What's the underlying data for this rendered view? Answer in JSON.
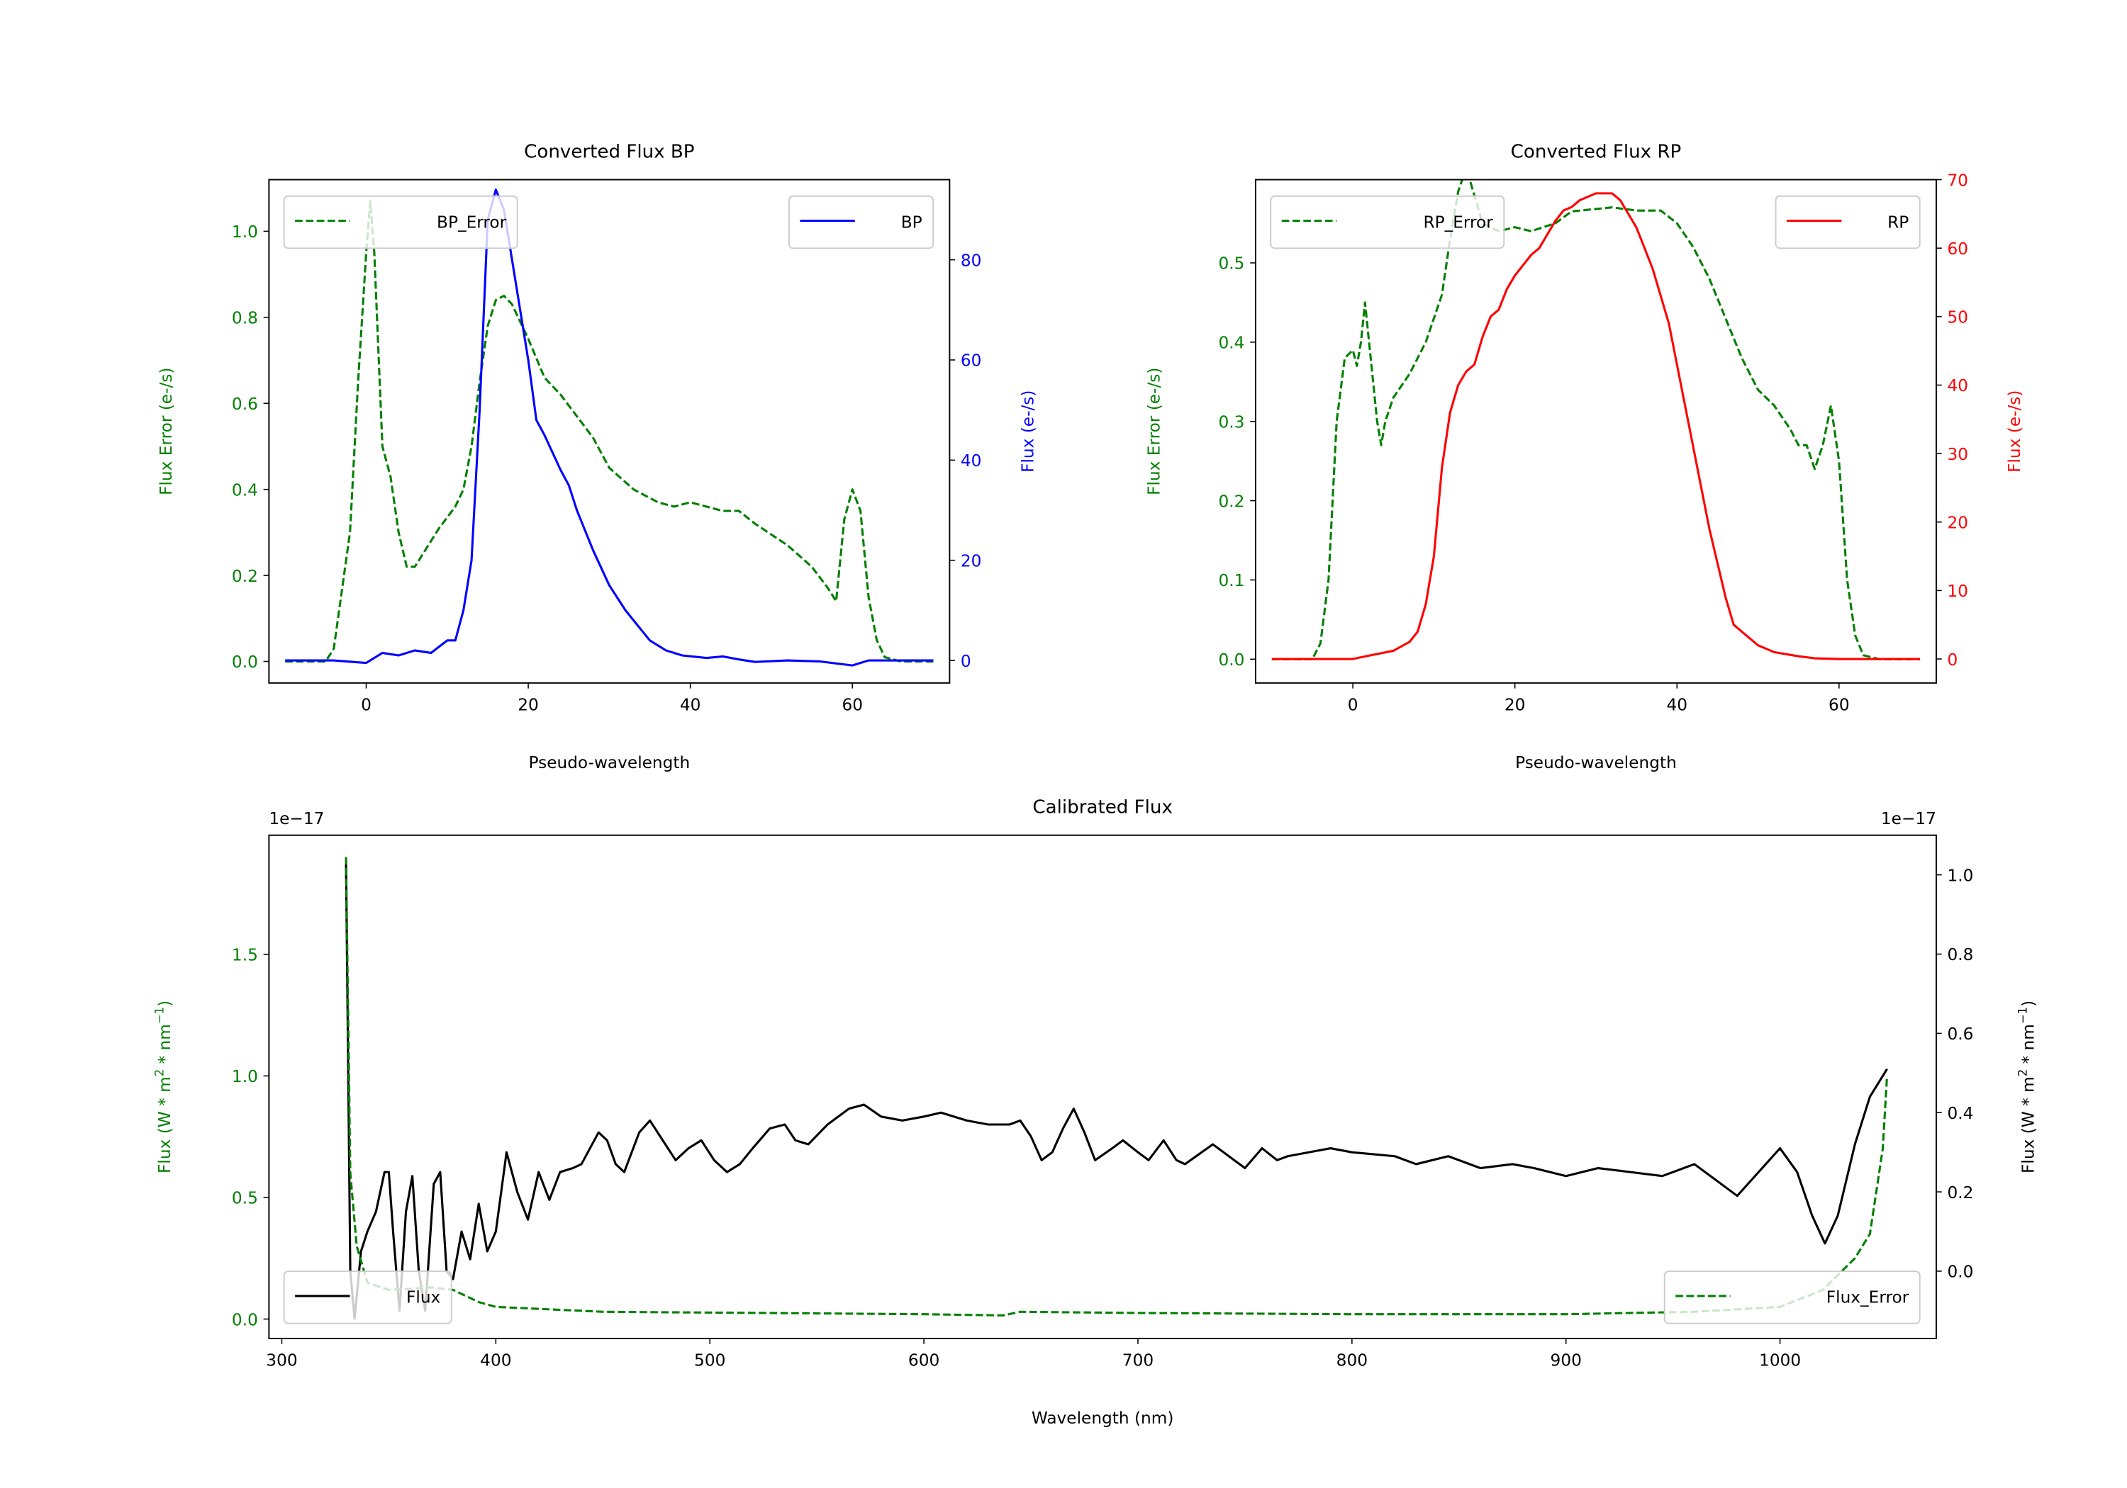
{
  "chart_data": [
    {
      "type": "line",
      "title": "Converted Flux BP",
      "xlabel": "Pseudo-wavelength",
      "ylabel_left": "Flux Error (e-/s)",
      "ylabel_right": "Flux (e-/s)",
      "xticks": [
        "0",
        "20",
        "40",
        "60"
      ],
      "yticks_left": [
        "0.0",
        "0.2",
        "0.4",
        "0.6",
        "0.8",
        "1.0"
      ],
      "yticks_right": [
        "0",
        "20",
        "40",
        "60",
        "80"
      ],
      "left_color": "#008000",
      "right_color": "#0000ff",
      "legend_left": {
        "label": "BP_Error",
        "placement": "upper-left"
      },
      "legend_right": {
        "label": "BP",
        "placement": "upper-right"
      },
      "series": [
        {
          "name": "BP_Error",
          "axis": "left",
          "style": "dashed",
          "color": "#008000",
          "x": [
            -10,
            -5,
            -4,
            -2,
            -1,
            0,
            0.5,
            1,
            2,
            3,
            4,
            5,
            6,
            7,
            9,
            11,
            12,
            13,
            14,
            15,
            16,
            17,
            18,
            20,
            22,
            24,
            26,
            28,
            30,
            33,
            36,
            38,
            40,
            42,
            44,
            46,
            48,
            52,
            55,
            57,
            58,
            59,
            60,
            61,
            62,
            63,
            64,
            66,
            70
          ],
          "y": [
            0,
            0,
            0.03,
            0.3,
            0.65,
            0.95,
            1.07,
            0.95,
            0.5,
            0.43,
            0.3,
            0.22,
            0.22,
            0.25,
            0.31,
            0.36,
            0.4,
            0.5,
            0.65,
            0.78,
            0.84,
            0.85,
            0.83,
            0.75,
            0.66,
            0.62,
            0.57,
            0.52,
            0.45,
            0.4,
            0.37,
            0.36,
            0.37,
            0.36,
            0.35,
            0.35,
            0.32,
            0.27,
            0.22,
            0.17,
            0.14,
            0.33,
            0.4,
            0.35,
            0.15,
            0.05,
            0.01,
            0,
            0
          ]
        },
        {
          "name": "BP",
          "axis": "right",
          "style": "solid",
          "color": "#0000ff",
          "x": [
            -10,
            -4,
            0,
            2,
            4,
            6,
            8,
            10,
            11,
            12,
            13,
            14,
            15,
            16,
            17,
            18,
            19,
            20,
            21,
            22,
            24,
            25,
            26,
            28,
            30,
            32,
            33,
            34,
            35,
            37,
            39,
            42,
            44,
            46,
            48,
            52,
            56,
            60,
            62,
            65,
            70
          ],
          "y": [
            0,
            0,
            -0.5,
            1.5,
            1,
            2,
            1.5,
            4,
            4,
            10,
            20,
            50,
            88,
            94,
            90,
            80,
            70,
            60,
            48,
            45,
            38,
            35,
            30,
            22,
            15,
            10,
            8,
            6,
            4,
            2,
            1,
            0.5,
            0.8,
            0.2,
            -0.3,
            0,
            -0.2,
            -1,
            0,
            0,
            0
          ]
        }
      ],
      "xlim": [
        -12,
        72
      ],
      "ylim_left": [
        -0.05,
        1.12
      ],
      "ylim_right": [
        -4.5,
        96
      ]
    },
    {
      "type": "line",
      "title": "Converted Flux RP",
      "xlabel": "Pseudo-wavelength",
      "ylabel_left": "Flux Error (e-/s)",
      "ylabel_right": "Flux (e-/s)",
      "xticks": [
        "0",
        "20",
        "40",
        "60"
      ],
      "yticks_left": [
        "0.0",
        "0.1",
        "0.2",
        "0.3",
        "0.4",
        "0.5"
      ],
      "yticks_right": [
        "0",
        "10",
        "20",
        "30",
        "40",
        "50",
        "60",
        "70"
      ],
      "left_color": "#008000",
      "right_color": "#ff0000",
      "legend_left": {
        "label": "RP_Error",
        "placement": "upper-left"
      },
      "legend_right": {
        "label": "RP",
        "placement": "upper-right"
      },
      "series": [
        {
          "name": "RP_Error",
          "axis": "left",
          "style": "dashed",
          "color": "#008000",
          "x": [
            -10,
            -5,
            -4,
            -3,
            -2,
            -1,
            0,
            0.5,
            1,
            1.5,
            2,
            3,
            3.5,
            4,
            5,
            7,
            9,
            11,
            12,
            13,
            14,
            16,
            18,
            20,
            22,
            25,
            27,
            29,
            32,
            35,
            38,
            40,
            42,
            44,
            46,
            48,
            50,
            52,
            54,
            55,
            56,
            57,
            58,
            59,
            60,
            61,
            62,
            63,
            65,
            70
          ],
          "y": [
            0,
            0,
            0.02,
            0.1,
            0.3,
            0.38,
            0.39,
            0.37,
            0.4,
            0.45,
            0.4,
            0.3,
            0.27,
            0.3,
            0.33,
            0.36,
            0.4,
            0.46,
            0.53,
            0.59,
            0.62,
            0.55,
            0.54,
            0.545,
            0.54,
            0.55,
            0.565,
            0.567,
            0.57,
            0.566,
            0.566,
            0.55,
            0.52,
            0.48,
            0.43,
            0.38,
            0.34,
            0.32,
            0.29,
            0.27,
            0.27,
            0.24,
            0.27,
            0.32,
            0.25,
            0.1,
            0.03,
            0.005,
            0,
            0
          ]
        },
        {
          "name": "RP",
          "axis": "right",
          "style": "solid",
          "color": "#ff0000",
          "x": [
            -10,
            0,
            2,
            5,
            7,
            8,
            9,
            10,
            11,
            12,
            13,
            14,
            15,
            16,
            17,
            18,
            19,
            20,
            21,
            22,
            23,
            24,
            25,
            26,
            27,
            28,
            30,
            32,
            33,
            34,
            35,
            36,
            37,
            38,
            39,
            40,
            41,
            42,
            43,
            44,
            45,
            46,
            47,
            48,
            49,
            50,
            52,
            55,
            57,
            60,
            70
          ],
          "y": [
            0,
            0,
            0.5,
            1.2,
            2.5,
            4,
            8,
            15,
            28,
            36,
            40,
            42,
            43,
            47,
            50,
            51,
            54,
            56,
            57.5,
            59,
            60,
            62,
            64,
            65.5,
            66,
            67,
            68,
            68,
            67,
            65,
            63,
            60,
            57,
            53,
            49,
            43,
            37,
            31,
            25,
            19,
            14,
            9,
            5,
            4,
            3,
            2,
            1,
            0.4,
            0.1,
            0,
            0
          ]
        }
      ],
      "xlim": [
        -12,
        72
      ],
      "ylim_left": [
        -0.03,
        0.605
      ],
      "ylim_right": [
        -3.5,
        70
      ]
    },
    {
      "type": "line",
      "title": "Calibrated Flux",
      "xlabel": "Wavelength (nm)",
      "ylabel_left": [
        "Flux (W * m",
        "2",
        " * nm",
        "−1",
        ")"
      ],
      "ylabel_right": [
        "Flux (W * m",
        "2",
        " * nm",
        "−1",
        ")"
      ],
      "offset_left": "1e−17",
      "offset_right": "1e−17",
      "xticks": [
        "300",
        "400",
        "500",
        "600",
        "700",
        "800",
        "900",
        "1000"
      ],
      "yticks_left": [
        "0.0",
        "0.5",
        "1.0",
        "1.5"
      ],
      "yticks_right": [
        "0.0",
        "0.2",
        "0.4",
        "0.6",
        "0.8",
        "1.0"
      ],
      "left_color": "#008000",
      "right_color": "#000000",
      "legend_left": {
        "label": "Flux",
        "placement": "lower-left"
      },
      "legend_right": {
        "label": "Flux_Error",
        "placement": "lower-right"
      },
      "series": [
        {
          "name": "Flux",
          "axis": "right",
          "style": "solid",
          "color": "#000000",
          "x": [
            330,
            332,
            334,
            337,
            340,
            344,
            348,
            350,
            352,
            355,
            358,
            361,
            364,
            367,
            371,
            374,
            377,
            380,
            384,
            388,
            392,
            396,
            400,
            405,
            410,
            415,
            420,
            425,
            430,
            436,
            440,
            448,
            452,
            456,
            460,
            467,
            472,
            478,
            484,
            490,
            496,
            502,
            508,
            514,
            520,
            528,
            535,
            540,
            546,
            555,
            565,
            572,
            580,
            590,
            600,
            608,
            620,
            630,
            640,
            645,
            650,
            655,
            660,
            665,
            670,
            675,
            680,
            688,
            693,
            700,
            705,
            712,
            718,
            722,
            735,
            745,
            750,
            758,
            765,
            770,
            780,
            790,
            800,
            820,
            830,
            845,
            860,
            875,
            885,
            900,
            915,
            930,
            945,
            960,
            970,
            980,
            990,
            1000,
            1008,
            1015,
            1021,
            1027,
            1035,
            1042,
            1050
          ],
          "y": [
            1.03,
            0.0,
            -0.12,
            0.05,
            0.1,
            0.15,
            0.25,
            0.25,
            0.1,
            -0.1,
            0.15,
            0.24,
            0.0,
            -0.1,
            0.22,
            0.25,
            0.0,
            -0.02,
            0.1,
            0.03,
            0.17,
            0.05,
            0.1,
            0.3,
            0.2,
            0.13,
            0.25,
            0.18,
            0.25,
            0.26,
            0.27,
            0.35,
            0.33,
            0.27,
            0.25,
            0.35,
            0.38,
            0.33,
            0.28,
            0.31,
            0.33,
            0.28,
            0.25,
            0.27,
            0.31,
            0.36,
            0.37,
            0.33,
            0.32,
            0.37,
            0.41,
            0.42,
            0.39,
            0.38,
            0.39,
            0.4,
            0.38,
            0.37,
            0.37,
            0.38,
            0.34,
            0.28,
            0.3,
            0.36,
            0.41,
            0.35,
            0.28,
            0.31,
            0.33,
            0.3,
            0.28,
            0.33,
            0.28,
            0.27,
            0.32,
            0.28,
            0.26,
            0.31,
            0.28,
            0.29,
            0.3,
            0.31,
            0.3,
            0.29,
            0.27,
            0.29,
            0.26,
            0.27,
            0.26,
            0.24,
            0.26,
            0.25,
            0.24,
            0.27,
            0.23,
            0.19,
            0.25,
            0.31,
            0.25,
            0.14,
            0.07,
            0.14,
            0.32,
            0.44,
            0.51
          ]
        },
        {
          "name": "Flux_Error",
          "axis": "left",
          "style": "dashed",
          "color": "#008000",
          "x": [
            330,
            332,
            335,
            340,
            350,
            370,
            380,
            392,
            400,
            450,
            600,
            637,
            645,
            700,
            800,
            900,
            960,
            1000,
            1020,
            1035,
            1042,
            1048,
            1050
          ],
          "y": [
            1.9,
            0.6,
            0.3,
            0.15,
            0.12,
            0.13,
            0.12,
            0.07,
            0.05,
            0.03,
            0.02,
            0.015,
            0.03,
            0.025,
            0.02,
            0.02,
            0.03,
            0.05,
            0.12,
            0.25,
            0.35,
            0.7,
            1.0
          ]
        }
      ],
      "xlim": [
        294,
        1073
      ],
      "ylim_left": [
        -0.08,
        1.99
      ],
      "ylim_right": [
        -0.17,
        1.1
      ]
    }
  ]
}
